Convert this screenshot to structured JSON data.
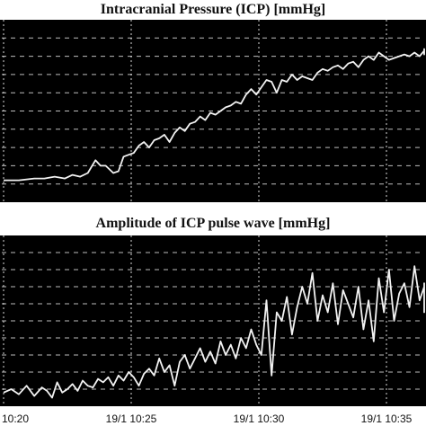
{
  "colors": {
    "panel_background": "#000000",
    "trace": "#f2f2f2",
    "page_background": "#ffffff"
  },
  "x_tick_labels": [
    "10:20",
    "19/1 10:25",
    "19/1 10:30",
    "19/1 10:35"
  ],
  "chart_data": [
    {
      "type": "line",
      "title": "Intracranial Pressure (ICP) [mmHg]",
      "xlabel": "",
      "ylabel": "",
      "x_tick_labels": [
        "10:20",
        "19/1 10:25",
        "19/1 10:30",
        "19/1 10:35"
      ],
      "x_range_minutes": [
        0,
        17.7
      ],
      "x_ticks_minutes": [
        0,
        5,
        10,
        15
      ],
      "y_gridlines": 9,
      "y_range_relative": [
        0,
        1
      ],
      "grid": true,
      "legend": "none",
      "note_units": "Y axis carries no numeric labels; values are relative levels within the panel (0 = bottom, 1 = top).",
      "series": [
        {
          "x": [
            0,
            0.6,
            1.2,
            1.6,
            2.0,
            2.4,
            2.7,
            3.0,
            3.3,
            3.6,
            3.8,
            4.0,
            4.3,
            4.5,
            4.7,
            4.9,
            5.1,
            5.3,
            5.5,
            5.7,
            5.9,
            6.1,
            6.3,
            6.5,
            6.7,
            6.9,
            7.1,
            7.3,
            7.5,
            7.7,
            7.9,
            8.1,
            8.3,
            8.5,
            8.7,
            8.9,
            9.1,
            9.3,
            9.5,
            9.7,
            9.9,
            10.1,
            10.3,
            10.5,
            10.7,
            10.9,
            11.1,
            11.3,
            11.5,
            11.7,
            11.9,
            12.1,
            12.3,
            12.5,
            12.7,
            12.9,
            13.1,
            13.3,
            13.5,
            13.7,
            13.9,
            14.1,
            14.3,
            14.5,
            14.7,
            14.9,
            15.1,
            15.3,
            15.5,
            15.7,
            15.9,
            16.1,
            16.3,
            16.5,
            16.7,
            16.9,
            17.1,
            17.3,
            17.5,
            17.7
          ],
          "y": [
            0.12,
            0.12,
            0.13,
            0.13,
            0.14,
            0.13,
            0.15,
            0.14,
            0.16,
            0.23,
            0.2,
            0.2,
            0.16,
            0.17,
            0.25,
            0.26,
            0.27,
            0.31,
            0.33,
            0.3,
            0.34,
            0.35,
            0.37,
            0.33,
            0.38,
            0.41,
            0.39,
            0.43,
            0.44,
            0.47,
            0.45,
            0.49,
            0.48,
            0.5,
            0.52,
            0.53,
            0.55,
            0.54,
            0.59,
            0.62,
            0.59,
            0.63,
            0.67,
            0.66,
            0.6,
            0.67,
            0.66,
            0.7,
            0.67,
            0.69,
            0.68,
            0.67,
            0.71,
            0.73,
            0.72,
            0.74,
            0.75,
            0.73,
            0.76,
            0.77,
            0.74,
            0.78,
            0.8,
            0.78,
            0.82,
            0.8,
            0.78,
            0.79,
            0.8,
            0.81,
            0.8,
            0.82,
            0.8,
            0.83,
            0.84,
            0.82,
            0.83,
            0.81,
            0.84,
            0.83
          ]
        }
      ]
    },
    {
      "type": "line",
      "title": "Amplitude of ICP pulse wave [mmHg]",
      "xlabel": "",
      "ylabel": "",
      "x_tick_labels": [
        "10:20",
        "19/1 10:25",
        "19/1 10:30",
        "19/1 10:35"
      ],
      "x_range_minutes": [
        0,
        17.7
      ],
      "x_ticks_minutes": [
        0,
        5,
        10,
        15
      ],
      "y_gridlines": 9,
      "y_range_relative": [
        0,
        1
      ],
      "grid": true,
      "legend": "none",
      "note_units": "Y axis carries no numeric labels; values are relative levels within the panel (0 = bottom, 1 = top).",
      "series": [
        {
          "x": [
            0,
            0.3,
            0.6,
            0.9,
            1.2,
            1.5,
            1.7,
            1.9,
            2.1,
            2.3,
            2.5,
            2.7,
            2.9,
            3.1,
            3.3,
            3.5,
            3.7,
            3.9,
            4.1,
            4.3,
            4.5,
            4.7,
            4.9,
            5.1,
            5.3,
            5.5,
            5.7,
            5.9,
            6.1,
            6.3,
            6.5,
            6.7,
            6.9,
            7.1,
            7.3,
            7.5,
            7.7,
            7.9,
            8.1,
            8.3,
            8.5,
            8.7,
            8.9,
            9.1,
            9.3,
            9.5,
            9.7,
            9.9,
            10.1,
            10.3,
            10.5,
            10.7,
            10.9,
            11.1,
            11.3,
            11.5,
            11.7,
            11.9,
            12.1,
            12.3,
            12.5,
            12.7,
            12.9,
            13.1,
            13.3,
            13.5,
            13.7,
            13.9,
            14.1,
            14.3,
            14.5,
            14.7,
            14.9,
            15.1,
            15.3,
            15.5,
            15.7,
            15.9,
            16.1,
            16.3,
            16.5,
            16.7,
            16.9,
            17.1,
            17.3,
            17.5,
            17.7
          ],
          "y": [
            0.08,
            0.1,
            0.07,
            0.12,
            0.06,
            0.11,
            0.09,
            0.05,
            0.14,
            0.08,
            0.1,
            0.13,
            0.09,
            0.15,
            0.12,
            0.11,
            0.16,
            0.14,
            0.17,
            0.12,
            0.18,
            0.15,
            0.2,
            0.17,
            0.12,
            0.19,
            0.22,
            0.18,
            0.28,
            0.2,
            0.24,
            0.12,
            0.26,
            0.3,
            0.22,
            0.28,
            0.34,
            0.26,
            0.32,
            0.25,
            0.38,
            0.3,
            0.36,
            0.28,
            0.4,
            0.34,
            0.45,
            0.36,
            0.3,
            0.62,
            0.18,
            0.55,
            0.5,
            0.64,
            0.42,
            0.58,
            0.7,
            0.6,
            0.78,
            0.5,
            0.65,
            0.55,
            0.72,
            0.48,
            0.68,
            0.6,
            0.52,
            0.7,
            0.45,
            0.62,
            0.38,
            0.75,
            0.55,
            0.8,
            0.5,
            0.66,
            0.72,
            0.58,
            0.82,
            0.62,
            0.7,
            0.56,
            0.68,
            0.6,
            0.72,
            0.55,
            0.7
          ]
        }
      ]
    }
  ]
}
